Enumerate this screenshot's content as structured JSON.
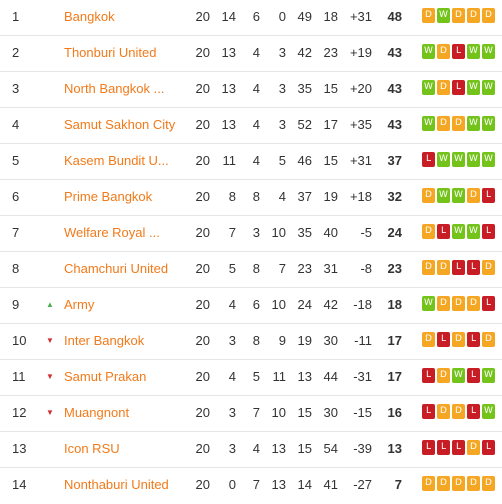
{
  "standings": [
    {
      "pos": "1",
      "trend": "",
      "team": "Bangkok",
      "p": "20",
      "w": "14",
      "d": "6",
      "l": "0",
      "gf": "49",
      "ga": "18",
      "gd": "+31",
      "pts": "48",
      "form": [
        "D",
        "W",
        "D",
        "D",
        "D"
      ]
    },
    {
      "pos": "2",
      "trend": "",
      "team": "Thonburi United",
      "p": "20",
      "w": "13",
      "d": "4",
      "l": "3",
      "gf": "42",
      "ga": "23",
      "gd": "+19",
      "pts": "43",
      "form": [
        "W",
        "D",
        "L",
        "W",
        "W"
      ]
    },
    {
      "pos": "3",
      "trend": "",
      "team": "North Bangkok ...",
      "p": "20",
      "w": "13",
      "d": "4",
      "l": "3",
      "gf": "35",
      "ga": "15",
      "gd": "+20",
      "pts": "43",
      "form": [
        "W",
        "D",
        "L",
        "W",
        "W"
      ]
    },
    {
      "pos": "4",
      "trend": "",
      "team": "Samut Sakhon City",
      "p": "20",
      "w": "13",
      "d": "4",
      "l": "3",
      "gf": "52",
      "ga": "17",
      "gd": "+35",
      "pts": "43",
      "form": [
        "W",
        "D",
        "D",
        "W",
        "W"
      ]
    },
    {
      "pos": "5",
      "trend": "",
      "team": "Kasem Bundit U...",
      "p": "20",
      "w": "11",
      "d": "4",
      "l": "5",
      "gf": "46",
      "ga": "15",
      "gd": "+31",
      "pts": "37",
      "form": [
        "L",
        "W",
        "W",
        "W",
        "W"
      ]
    },
    {
      "pos": "6",
      "trend": "",
      "team": "Prime Bangkok",
      "p": "20",
      "w": "8",
      "d": "8",
      "l": "4",
      "gf": "37",
      "ga": "19",
      "gd": "+18",
      "pts": "32",
      "form": [
        "D",
        "W",
        "W",
        "D",
        "L"
      ]
    },
    {
      "pos": "7",
      "trend": "",
      "team": "Welfare Royal ...",
      "p": "20",
      "w": "7",
      "d": "3",
      "l": "10",
      "gf": "35",
      "ga": "40",
      "gd": "-5",
      "pts": "24",
      "form": [
        "D",
        "L",
        "W",
        "W",
        "L"
      ]
    },
    {
      "pos": "8",
      "trend": "",
      "team": "Chamchuri United",
      "p": "20",
      "w": "5",
      "d": "8",
      "l": "7",
      "gf": "23",
      "ga": "31",
      "gd": "-8",
      "pts": "23",
      "form": [
        "D",
        "D",
        "L",
        "L",
        "D"
      ]
    },
    {
      "pos": "9",
      "trend": "up",
      "team": "Army",
      "p": "20",
      "w": "4",
      "d": "6",
      "l": "10",
      "gf": "24",
      "ga": "42",
      "gd": "-18",
      "pts": "18",
      "form": [
        "W",
        "D",
        "D",
        "D",
        "L"
      ]
    },
    {
      "pos": "10",
      "trend": "down",
      "team": "Inter Bangkok",
      "p": "20",
      "w": "3",
      "d": "8",
      "l": "9",
      "gf": "19",
      "ga": "30",
      "gd": "-11",
      "pts": "17",
      "form": [
        "D",
        "L",
        "D",
        "L",
        "D"
      ]
    },
    {
      "pos": "11",
      "trend": "down",
      "team": "Samut Prakan",
      "p": "20",
      "w": "4",
      "d": "5",
      "l": "11",
      "gf": "13",
      "ga": "44",
      "gd": "-31",
      "pts": "17",
      "form": [
        "L",
        "D",
        "W",
        "L",
        "W"
      ]
    },
    {
      "pos": "12",
      "trend": "down",
      "team": "Muangnont",
      "p": "20",
      "w": "3",
      "d": "7",
      "l": "10",
      "gf": "15",
      "ga": "30",
      "gd": "-15",
      "pts": "16",
      "form": [
        "L",
        "D",
        "D",
        "L",
        "W"
      ]
    },
    {
      "pos": "13",
      "trend": "",
      "team": "Icon RSU",
      "p": "20",
      "w": "3",
      "d": "4",
      "l": "13",
      "gf": "15",
      "ga": "54",
      "gd": "-39",
      "pts": "13",
      "form": [
        "L",
        "L",
        "L",
        "D",
        "L"
      ]
    },
    {
      "pos": "14",
      "trend": "",
      "team": "Nonthaburi United",
      "p": "20",
      "w": "0",
      "d": "7",
      "l": "13",
      "gf": "14",
      "ga": "41",
      "gd": "-27",
      "pts": "7",
      "form": [
        "D",
        "D",
        "D",
        "D",
        "D"
      ]
    }
  ],
  "icons": {
    "up": "triangle-up-icon",
    "down": "triangle-down-icon"
  },
  "colors": {
    "team_link": "#f27a1a",
    "win": "#74c31b",
    "draw": "#f5a623",
    "loss": "#c81d25",
    "trend_up": "#4caf50",
    "trend_down": "#d32f2f"
  }
}
